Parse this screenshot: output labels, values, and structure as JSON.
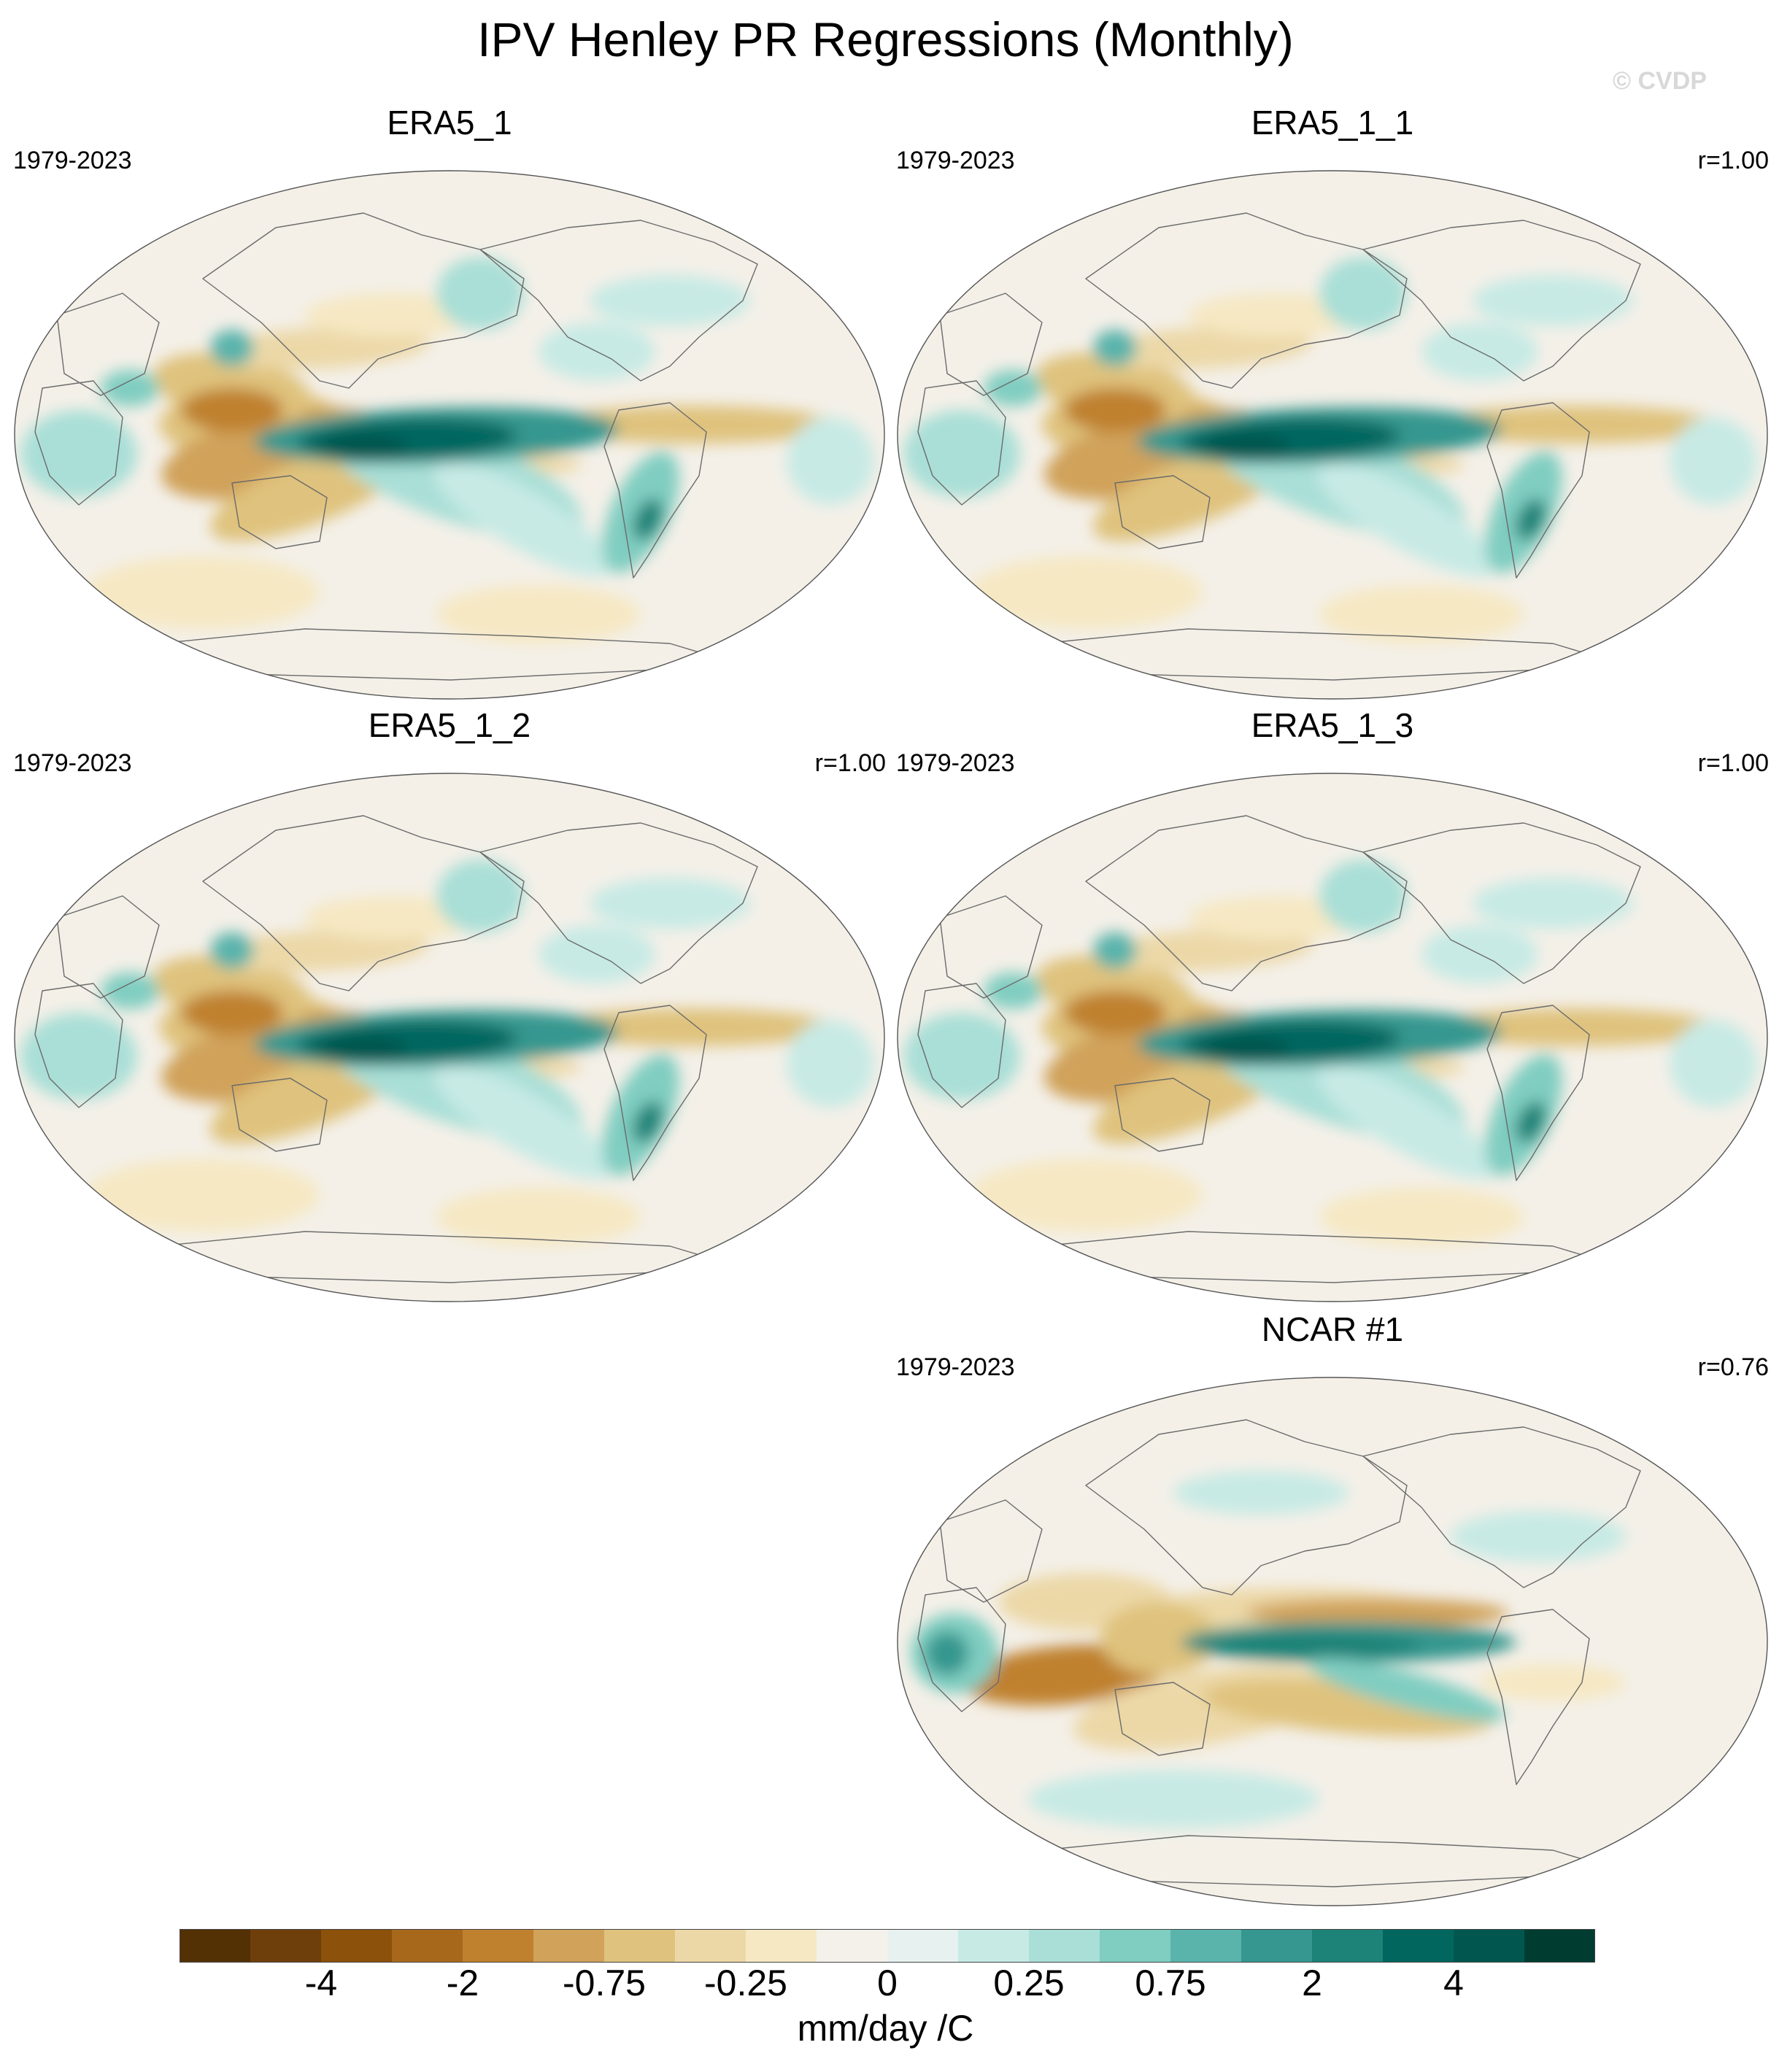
{
  "title": "IPV Henley PR Regressions (Monthly)",
  "watermark": "© CVDP",
  "colors": {
    "scale": [
      "#543005",
      "#6f3f0b",
      "#8c510a",
      "#a8681c",
      "#bf812d",
      "#d0a25a",
      "#dfc27d",
      "#ecd8a7",
      "#f6e8c3",
      "#f4f1eb",
      "#e7f1ef",
      "#c7eae5",
      "#a9dfd7",
      "#80cdc1",
      "#5ab4ac",
      "#35978f",
      "#1d8277",
      "#01665e",
      "#01574f",
      "#003c30"
    ],
    "ocean": "#f4f0e8",
    "coast": "#6b6b6b"
  },
  "panels": [
    {
      "title": "ERA5_1",
      "period": "1979-2023",
      "corr": ""
    },
    {
      "title": "ERA5_1_1",
      "period": "1979-2023",
      "corr": "r=1.00"
    },
    {
      "title": "ERA5_1_2",
      "period": "1979-2023",
      "corr": "r=1.00"
    },
    {
      "title": "ERA5_1_3",
      "period": "1979-2023",
      "corr": "r=1.00"
    },
    {
      "title": "NCAR #1",
      "period": "1979-2023",
      "corr": "r=0.76"
    }
  ],
  "colorbar": {
    "labels": [
      "-4",
      "-2",
      "-0.75",
      "-0.25",
      "0",
      "0.25",
      "0.75",
      "2",
      "4"
    ],
    "units": "mm/day /C"
  }
}
